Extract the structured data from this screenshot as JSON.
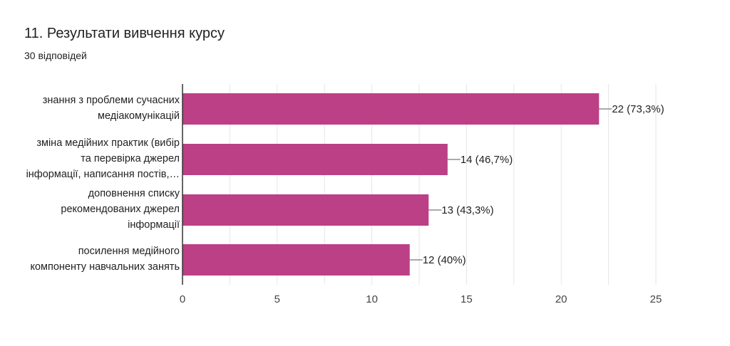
{
  "header": {
    "title": "11.  Результати вивчення курсу",
    "subtitle": "30 відповідей"
  },
  "colors": {
    "bar": "#bc4086",
    "grid": "#e6e6e6",
    "axis": "#333333",
    "text": "#222222"
  },
  "chart_data": {
    "type": "bar",
    "orientation": "horizontal",
    "categories": [
      [
        "знання з проблеми сучасних",
        "медіакомунікацій"
      ],
      [
        "зміна медійних практик (вибір",
        "та перевірка джерел",
        "інформації, написання постів,…"
      ],
      [
        "доповнення списку",
        "рекомендованих джерел",
        "інформації"
      ],
      [
        "посилення медійного",
        "компоненту навчальних занять"
      ]
    ],
    "values": [
      22,
      14,
      13,
      12
    ],
    "data_labels": [
      "22 (73,3%)",
      "14 (46,7%)",
      "13 (43,3%)",
      "12 (40%)"
    ],
    "xlim": [
      0,
      25
    ],
    "xticks": [
      0,
      5,
      10,
      15,
      20,
      25
    ],
    "grid": true
  }
}
